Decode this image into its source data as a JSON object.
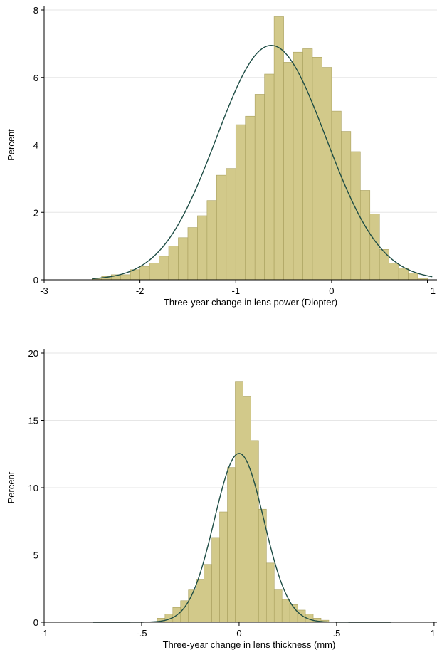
{
  "colors": {
    "bar_fill": "#d2c98a",
    "bar_stroke": "#a9a05e",
    "curve": "#1e4d45",
    "grid": "#e6e6e6",
    "axis": "#000000"
  },
  "chart_data": [
    {
      "type": "bar",
      "subtype": "histogram with normal density overlay",
      "title": "",
      "xlabel": "Three-year change in lens power (Diopter)",
      "ylabel": "Percent",
      "xlim": [
        -3,
        1.1
      ],
      "ylim": [
        0,
        8
      ],
      "x_ticks": [
        -3,
        -2,
        -1,
        0,
        1
      ],
      "y_ticks": [
        0,
        2,
        4,
        6,
        8
      ],
      "grid": true,
      "bin_width": 0.1,
      "bins": [
        {
          "x0": -2.5,
          "value": 0.05
        },
        {
          "x0": -2.4,
          "value": 0.1
        },
        {
          "x0": -2.3,
          "value": 0.15
        },
        {
          "x0": -2.2,
          "value": 0.15
        },
        {
          "x0": -2.1,
          "value": 0.3
        },
        {
          "x0": -2.0,
          "value": 0.4
        },
        {
          "x0": -1.9,
          "value": 0.5
        },
        {
          "x0": -1.8,
          "value": 0.7
        },
        {
          "x0": -1.7,
          "value": 1.0
        },
        {
          "x0": -1.6,
          "value": 1.25
        },
        {
          "x0": -1.5,
          "value": 1.55
        },
        {
          "x0": -1.4,
          "value": 1.9
        },
        {
          "x0": -1.3,
          "value": 2.35
        },
        {
          "x0": -1.2,
          "value": 3.1
        },
        {
          "x0": -1.1,
          "value": 3.3
        },
        {
          "x0": -1.0,
          "value": 4.6
        },
        {
          "x0": -0.9,
          "value": 4.85
        },
        {
          "x0": -0.8,
          "value": 5.5
        },
        {
          "x0": -0.7,
          "value": 6.1
        },
        {
          "x0": -0.6,
          "value": 7.8
        },
        {
          "x0": -0.5,
          "value": 6.45
        },
        {
          "x0": -0.4,
          "value": 6.75
        },
        {
          "x0": -0.3,
          "value": 6.85
        },
        {
          "x0": -0.2,
          "value": 6.6
        },
        {
          "x0": -0.1,
          "value": 6.3
        },
        {
          "x0": 0.0,
          "value": 5.0
        },
        {
          "x0": 0.1,
          "value": 4.4
        },
        {
          "x0": 0.2,
          "value": 3.8
        },
        {
          "x0": 0.3,
          "value": 2.65
        },
        {
          "x0": 0.4,
          "value": 1.95
        },
        {
          "x0": 0.5,
          "value": 0.9
        },
        {
          "x0": 0.6,
          "value": 0.5
        },
        {
          "x0": 0.7,
          "value": 0.35
        },
        {
          "x0": 0.8,
          "value": 0.2
        },
        {
          "x0": 0.9,
          "value": 0.05
        }
      ],
      "normal_curve": {
        "mean": -0.63,
        "sd": 0.571,
        "peak": 6.95,
        "x_range": [
          -2.5,
          1.05
        ]
      }
    },
    {
      "type": "bar",
      "subtype": "histogram with normal density overlay",
      "title": "",
      "xlabel": "Three-year change in lens thickness (mm)",
      "ylabel": "Percent",
      "xlim": [
        -1,
        1
      ],
      "ylim": [
        0,
        20
      ],
      "x_ticks": [
        -1,
        -0.5,
        0,
        0.5,
        1
      ],
      "x_tick_labels": [
        "-1",
        "-.5",
        "0",
        ".5",
        "1"
      ],
      "y_ticks": [
        0,
        5,
        10,
        15,
        20
      ],
      "grid": true,
      "bin_width": 0.04,
      "bins": [
        {
          "x0": -0.42,
          "value": 0.3
        },
        {
          "x0": -0.38,
          "value": 0.6
        },
        {
          "x0": -0.34,
          "value": 1.1
        },
        {
          "x0": -0.3,
          "value": 1.6
        },
        {
          "x0": -0.26,
          "value": 2.4
        },
        {
          "x0": -0.22,
          "value": 3.2
        },
        {
          "x0": -0.18,
          "value": 4.3
        },
        {
          "x0": -0.14,
          "value": 6.3
        },
        {
          "x0": -0.1,
          "value": 8.2
        },
        {
          "x0": -0.06,
          "value": 11.5
        },
        {
          "x0": -0.02,
          "value": 17.9
        },
        {
          "x0": 0.02,
          "value": 16.8
        },
        {
          "x0": 0.06,
          "value": 13.5
        },
        {
          "x0": 0.1,
          "value": 8.4
        },
        {
          "x0": 0.14,
          "value": 4.4
        },
        {
          "x0": 0.18,
          "value": 2.4
        },
        {
          "x0": 0.22,
          "value": 1.7
        },
        {
          "x0": 0.26,
          "value": 1.3
        },
        {
          "x0": 0.3,
          "value": 0.9
        },
        {
          "x0": 0.34,
          "value": 0.6
        },
        {
          "x0": 0.38,
          "value": 0.3
        },
        {
          "x0": 0.42,
          "value": 0.15
        }
      ],
      "normal_curve": {
        "mean": 0.0,
        "sd": 0.127,
        "peak": 12.55,
        "x_range": [
          -0.75,
          0.78
        ]
      }
    }
  ]
}
